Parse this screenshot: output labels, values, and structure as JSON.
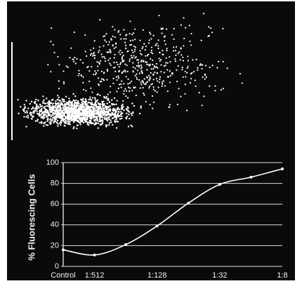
{
  "chart_data": {
    "type": "line",
    "y_label": "% Fluorescing Cells",
    "categories": [
      "Control",
      "1:512",
      null,
      "1:128",
      null,
      "1:32",
      null,
      "1:8"
    ],
    "values": [
      16,
      11,
      21,
      39,
      61,
      79,
      86,
      94
    ],
    "color": "#ffffff",
    "ylim": [
      0,
      100
    ],
    "yticks": [
      0,
      20,
      40,
      60,
      80,
      100
    ],
    "grid": true
  }
}
